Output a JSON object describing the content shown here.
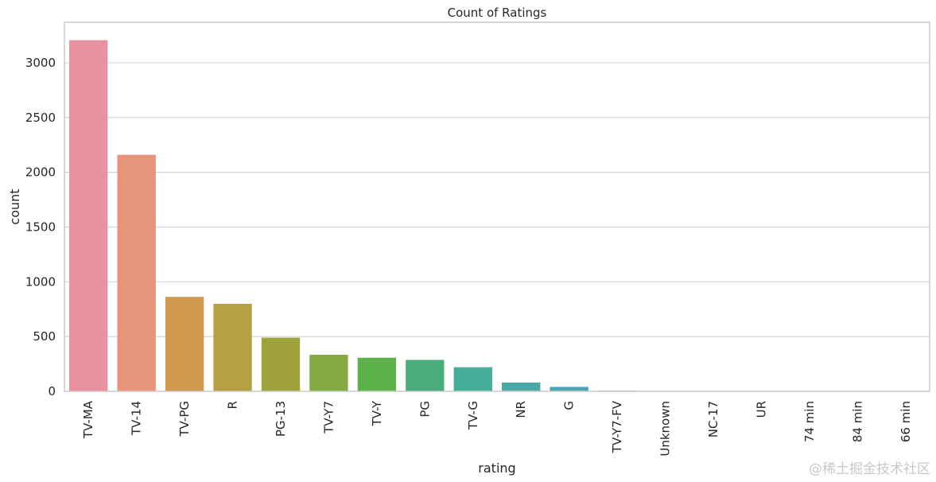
{
  "chart_data": {
    "type": "bar",
    "title": "Count of Ratings",
    "xlabel": "rating",
    "ylabel": "count",
    "categories": [
      "TV-MA",
      "TV-14",
      "TV-PG",
      "R",
      "PG-13",
      "TV-Y7",
      "TV-Y",
      "PG",
      "TV-G",
      "NR",
      "G",
      "TV-Y7-FV",
      "Unknown",
      "NC-17",
      "UR",
      "74 min",
      "84 min",
      "66 min"
    ],
    "values": [
      3207,
      2160,
      863,
      799,
      490,
      334,
      307,
      287,
      220,
      80,
      41,
      6,
      4,
      3,
      3,
      1,
      1,
      1
    ],
    "ylim": [
      0,
      3370
    ],
    "yticks": [
      0,
      500,
      1000,
      1500,
      2000,
      2500,
      3000
    ],
    "colors": [
      "#e8929f",
      "#e6947a",
      "#d09a4e",
      "#b5a046",
      "#a0a23c",
      "#85a943",
      "#5cb14a",
      "#4aad7a",
      "#46ad9a",
      "#48a9a6",
      "#4aa7b2",
      "#4ea7c4",
      "#6ba2d8",
      "#949ce6",
      "#b994e6",
      "#d88be2",
      "#e685d2",
      "#e88db8"
    ],
    "grid": true,
    "legend": "none"
  },
  "watermark": "@稀土掘金技术社区"
}
